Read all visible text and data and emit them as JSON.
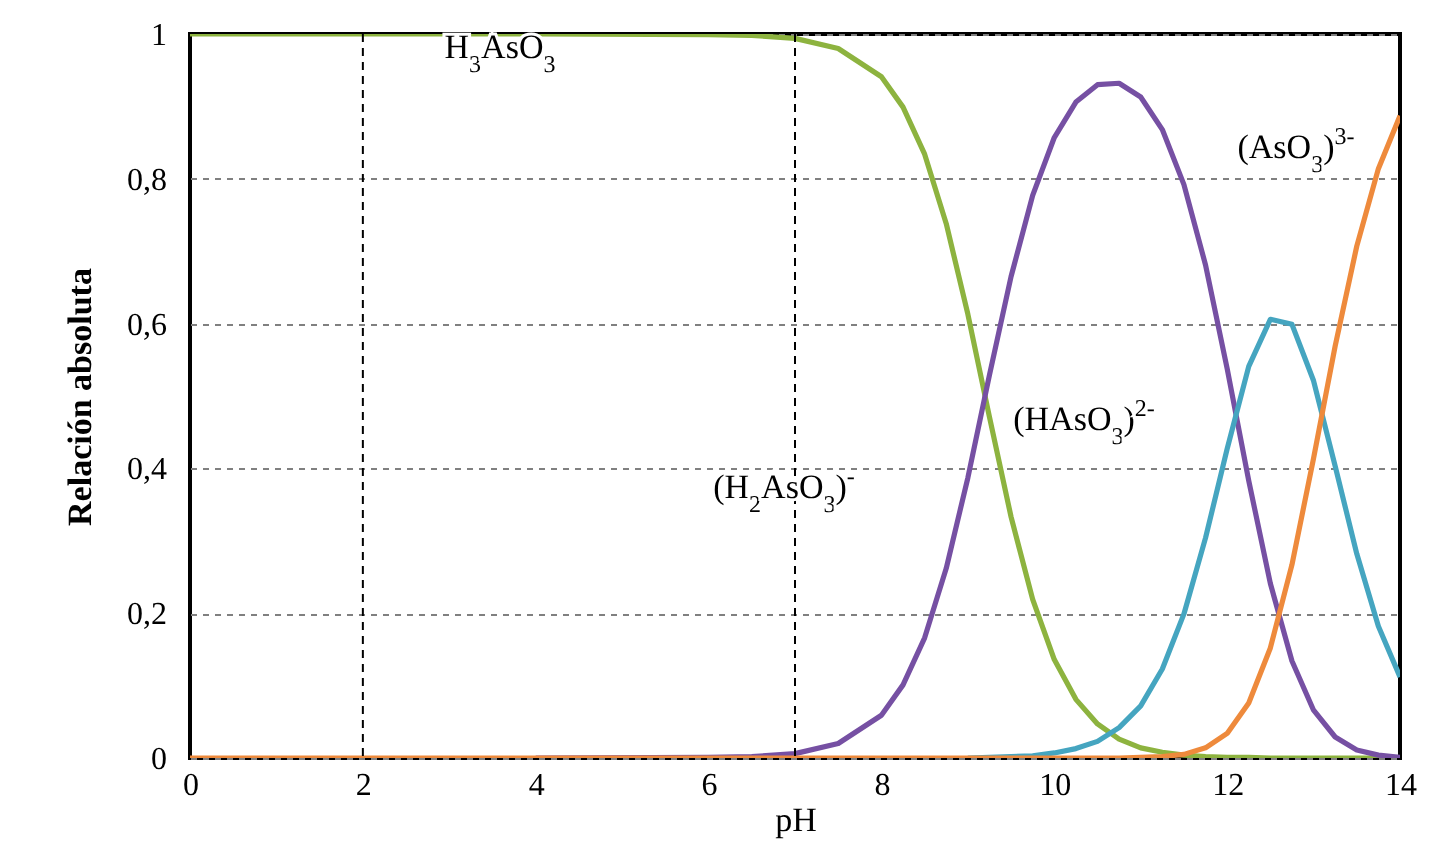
{
  "chart_data": {
    "type": "line",
    "xlabel": "pH",
    "ylabel": "Relación absoluta",
    "x": [
      0,
      2,
      4,
      6,
      6.5,
      7,
      7.5,
      8,
      8.25,
      8.5,
      8.75,
      9,
      9.25,
      9.5,
      9.75,
      10,
      10.25,
      10.5,
      10.75,
      11,
      11.25,
      11.5,
      11.75,
      12,
      12.25,
      12.5,
      12.75,
      13,
      13.25,
      13.5,
      13.75,
      14
    ],
    "series": [
      {
        "color": "#8db33f",
        "values": [
          1,
          1,
          1,
          0.999,
          0.998,
          0.994,
          0.98,
          0.941,
          0.899,
          0.834,
          0.738,
          0.613,
          0.471,
          0.333,
          0.219,
          0.136,
          0.081,
          0.047,
          0.026,
          0.014,
          0.008,
          0.004,
          0.002,
          0.001,
          0.001,
          0,
          0,
          0,
          0,
          0,
          0,
          0
        ]
      },
      {
        "color": "#7650a3",
        "values": [
          null,
          null,
          0,
          0.001,
          0.002,
          0.006,
          0.02,
          0.059,
          0.101,
          0.166,
          0.262,
          0.387,
          0.529,
          0.665,
          0.777,
          0.857,
          0.906,
          0.93,
          0.932,
          0.913,
          0.868,
          0.792,
          0.681,
          0.538,
          0.383,
          0.241,
          0.134,
          0.066,
          0.029,
          0.011,
          0.004,
          0.001
        ]
      },
      {
        "color": "#45a5c0",
        "values": [
          null,
          null,
          null,
          null,
          null,
          null,
          null,
          null,
          null,
          null,
          null,
          0,
          0.001,
          0.002,
          0.003,
          0.007,
          0.013,
          0.023,
          0.042,
          0.072,
          0.123,
          0.199,
          0.304,
          0.427,
          0.541,
          0.606,
          0.599,
          0.521,
          0.403,
          0.282,
          0.182,
          0.112
        ]
      },
      {
        "color": "#ee8a3c",
        "values": [
          0,
          0,
          0,
          0,
          0,
          0,
          0,
          0,
          0,
          0,
          0,
          0,
          0,
          0,
          0,
          0,
          0,
          0,
          0,
          0.001,
          0.002,
          0.005,
          0.014,
          0.034,
          0.076,
          0.152,
          0.267,
          0.414,
          0.569,
          0.707,
          0.814,
          0.887
        ]
      }
    ],
    "xlim": [
      0,
      14
    ],
    "xticks": [
      0,
      2,
      4,
      6,
      8,
      10,
      12,
      14
    ],
    "ylim": [
      0,
      1
    ],
    "yticks": [
      {
        "value": 0,
        "label": "0"
      },
      {
        "value": 0.2,
        "label": "0,2"
      },
      {
        "value": 0.4,
        "label": "0,4"
      },
      {
        "value": 0.6,
        "label": "0,6"
      },
      {
        "value": 0.8,
        "label": "0,8"
      },
      {
        "value": 1,
        "label": "1"
      }
    ],
    "grid": "y",
    "ref_lines": [
      {
        "axis": "x",
        "value": 2,
        "color": "#000000",
        "line_style": "dashed"
      },
      {
        "axis": "x",
        "value": 7,
        "color": "#000000",
        "line_style": "dashed"
      }
    ],
    "annotations": [
      "H$_{3}$AsO$_{3}$",
      "(H$_{2}$AsO$_{3}$)$^{-}$",
      "(HAsO$_{3}$)$^{2-}$",
      "(AsO$_{3}$)$^{3-}$"
    ]
  }
}
